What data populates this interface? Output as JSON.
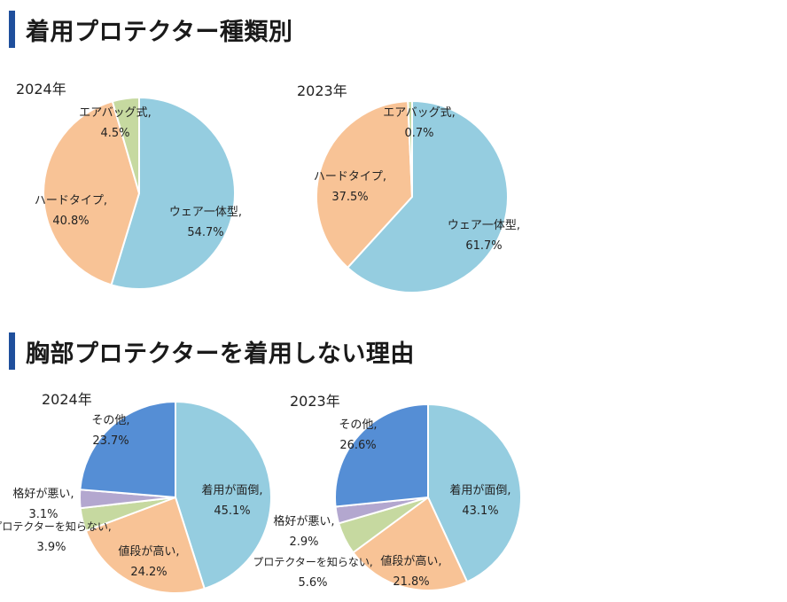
{
  "sections": [
    {
      "title": "着用プロテクター種類別"
    },
    {
      "title": "胸部プロテクターを着用しない理由"
    }
  ],
  "chart_data": [
    {
      "type": "pie",
      "title": "2024年",
      "slices": [
        {
          "name": "ウェア一体型",
          "value": 54.7,
          "label": "54.7%",
          "color": "#95cde0"
        },
        {
          "name": "ハードタイプ",
          "value": 40.8,
          "label": "40.8%",
          "color": "#f8c396"
        },
        {
          "name": "エアバッグ式",
          "value": 4.5,
          "label": "4.5%",
          "color": "#c6d9a0"
        }
      ]
    },
    {
      "type": "pie",
      "title": "2023年",
      "slices": [
        {
          "name": "ウェア一体型",
          "value": 61.7,
          "label": "61.7%",
          "color": "#95cde0"
        },
        {
          "name": "ハードタイプ",
          "value": 37.5,
          "label": "37.5%",
          "color": "#f8c396"
        },
        {
          "name": "エアバッグ式",
          "value": 0.7,
          "label": "0.7%",
          "color": "#c6d9a0"
        }
      ]
    },
    {
      "type": "pie",
      "title": "2024年",
      "slices": [
        {
          "name": "着用が面倒",
          "value": 45.1,
          "label": "45.1%",
          "color": "#95cde0"
        },
        {
          "name": "値段が高い",
          "value": 24.2,
          "label": "24.2%",
          "color": "#f8c396"
        },
        {
          "name": "プロテクターを知らない",
          "value": 3.9,
          "label": "3.9%",
          "color": "#c6d9a0"
        },
        {
          "name": "格好が悪い",
          "value": 3.1,
          "label": "3.1%",
          "color": "#b3a7cf"
        },
        {
          "name": "その他",
          "value": 23.7,
          "label": "23.7%",
          "color": "#558ed5"
        }
      ]
    },
    {
      "type": "pie",
      "title": "2023年",
      "slices": [
        {
          "name": "着用が面倒",
          "value": 43.1,
          "label": "43.1%",
          "color": "#95cde0"
        },
        {
          "name": "値段が高い",
          "value": 21.8,
          "label": "21.8%",
          "color": "#f8c396"
        },
        {
          "name": "プロテクターを知らない",
          "value": 5.6,
          "label": "5.6%",
          "color": "#c6d9a0"
        },
        {
          "name": "格好が悪い",
          "value": 2.9,
          "label": "2.9%",
          "color": "#b3a7cf"
        },
        {
          "name": "その他",
          "value": 26.6,
          "label": "26.6%",
          "color": "#558ed5"
        }
      ]
    }
  ]
}
